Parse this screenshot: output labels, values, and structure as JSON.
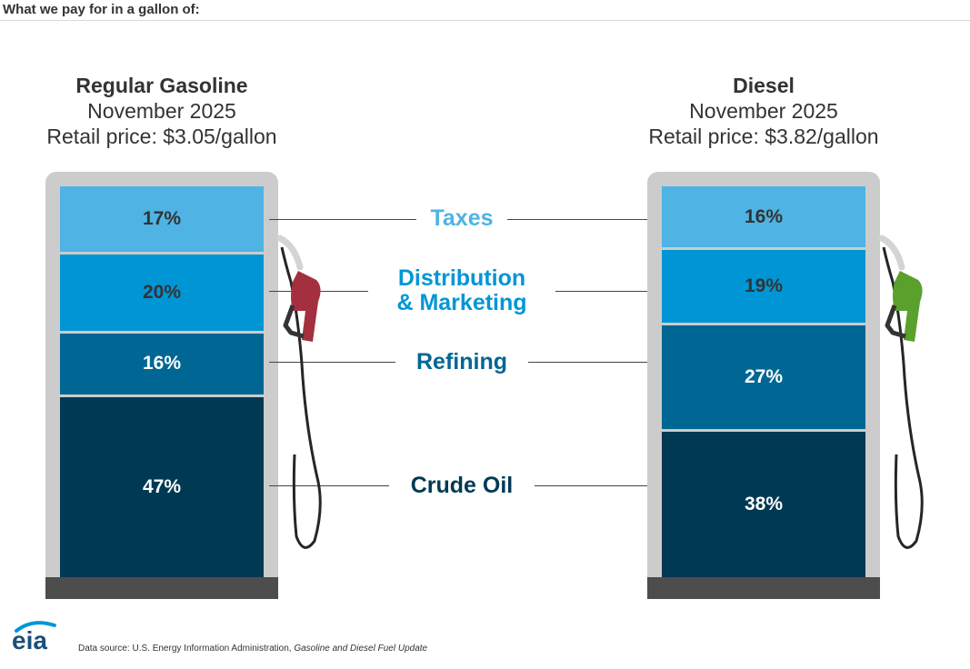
{
  "header": {
    "title": "What we pay for in a gallon of:"
  },
  "pumps": [
    {
      "fuel": "Regular Gasoline",
      "date": "November 2025",
      "price": "Retail price: $3.05/gallon",
      "nozzle_color": "#a4303f"
    },
    {
      "fuel": "Diesel",
      "date": "November 2025",
      "price": "Retail price: $3.82/gallon",
      "nozzle_color": "#5aa02c"
    }
  ],
  "components": [
    {
      "key": "taxes",
      "label_lines": [
        "Taxes"
      ],
      "color": "#4fb3e3",
      "text_color": "#333333",
      "label_color": "#4fb3e3"
    },
    {
      "key": "distribution",
      "label_lines": [
        "Distribution",
        "& Marketing"
      ],
      "color": "#0096d6",
      "text_color": "#333333",
      "label_color": "#0096d6"
    },
    {
      "key": "refining",
      "label_lines": [
        "Refining"
      ],
      "color": "#006694",
      "text_color": "#ffffff",
      "label_color": "#006694"
    },
    {
      "key": "crude",
      "label_lines": [
        "Crude Oil"
      ],
      "color": "#003953",
      "text_color": "#ffffff",
      "label_color": "#003953"
    }
  ],
  "chart_data": {
    "type": "bar",
    "title": "What we pay for in a gallon of:",
    "categories": [
      "Regular Gasoline",
      "Diesel"
    ],
    "series": [
      {
        "name": "Taxes",
        "values": [
          17,
          16
        ],
        "labels": [
          "17%",
          "16%"
        ]
      },
      {
        "name": "Distribution & Marketing",
        "values": [
          20,
          19
        ],
        "labels": [
          "20%",
          "19%"
        ]
      },
      {
        "name": "Refining",
        "values": [
          16,
          27
        ],
        "labels": [
          "16%",
          "27%"
        ]
      },
      {
        "name": "Crude Oil",
        "values": [
          47,
          38
        ],
        "labels": [
          "47%",
          "38%"
        ]
      }
    ],
    "stacked": true,
    "units": "percent of retail price"
  },
  "footer": {
    "logo_text": "eia",
    "source_prefix": "Data source: U.S. Energy Information Administration, ",
    "source_title": "Gasoline and Diesel Fuel Update"
  }
}
